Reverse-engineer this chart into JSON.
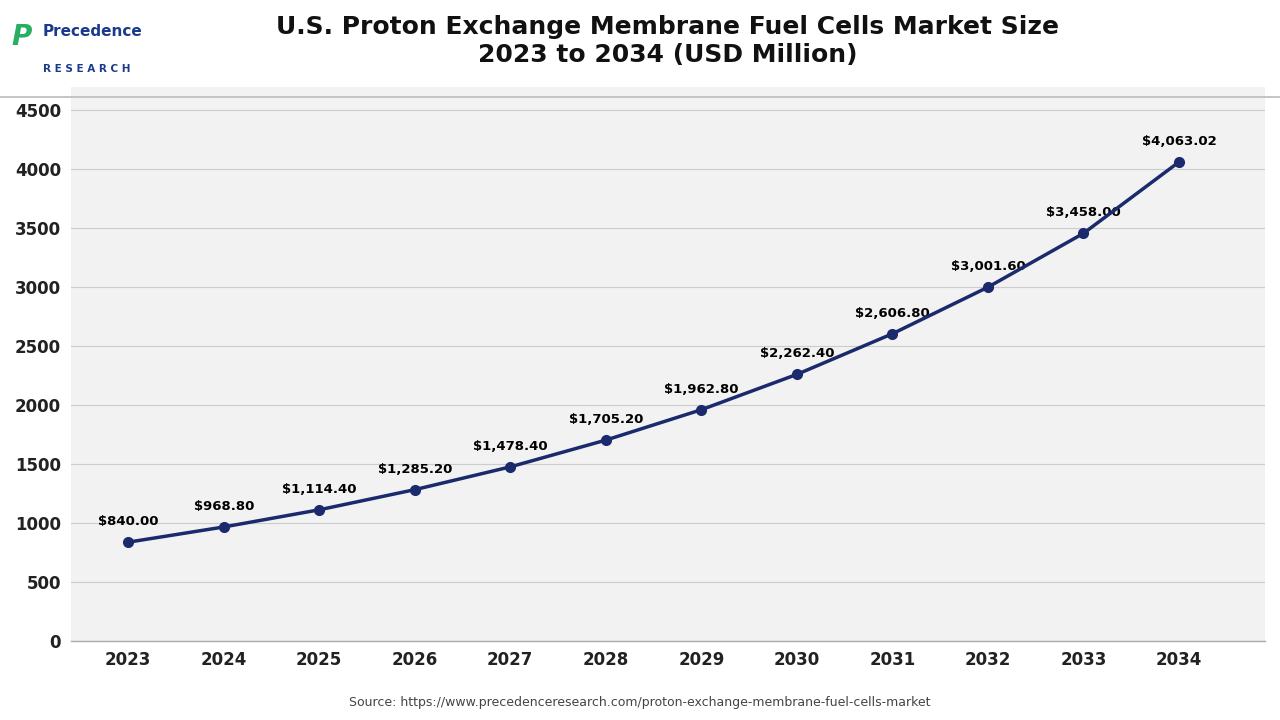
{
  "title_line1": "U.S. Proton Exchange Membrane Fuel Cells Market Size",
  "title_line2": "2023 to 2034 (USD Million)",
  "years": [
    2023,
    2024,
    2025,
    2026,
    2027,
    2028,
    2029,
    2030,
    2031,
    2032,
    2033,
    2034
  ],
  "values": [
    840.0,
    968.8,
    1114.4,
    1285.2,
    1478.4,
    1705.2,
    1962.8,
    2262.4,
    2606.8,
    3001.6,
    3458.0,
    4063.02
  ],
  "labels": [
    "$840.00",
    "$968.80",
    "$1,114.40",
    "$1,285.20",
    "$1,478.40",
    "$1,705.20",
    "$1,962.80",
    "$2,262.40",
    "$2,606.80",
    "$3,001.60",
    "$3,458.00",
    "$4,063.02"
  ],
  "line_color": "#1a2a6c",
  "marker_color": "#1a2a6c",
  "background_color": "#ffffff",
  "plot_bg_color": "#f2f2f2",
  "yticks": [
    0,
    500,
    1000,
    1500,
    2000,
    2500,
    3000,
    3500,
    4000,
    4500
  ],
  "ylim": [
    0,
    4700
  ],
  "source_text": "Source: https://www.precedenceresearch.com/proton-exchange-membrane-fuel-cells-market",
  "title_fontsize": 18,
  "label_fontsize": 9.5,
  "tick_fontsize": 12,
  "source_fontsize": 9,
  "line_width": 2.5,
  "marker_size": 7,
  "logo_precedence_color": "#1a3a8c",
  "logo_research_color": "#1a3a8c",
  "logo_icon_color": "#27ae60"
}
